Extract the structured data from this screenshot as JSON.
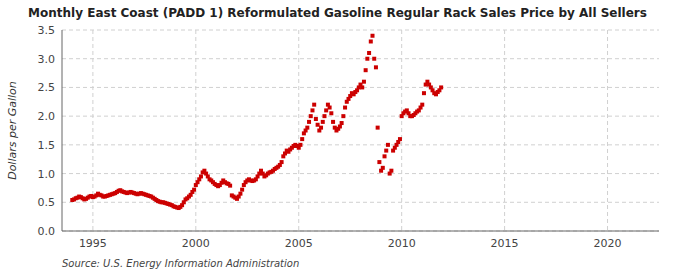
{
  "chart_data": {
    "type": "scatter",
    "title": "Monthly East Coast (PADD 1) Reformulated Gasoline Regular Rack Sales Price by All Sellers",
    "ylabel": "Dollars per Gallon",
    "annotations": [
      "Source: U.S. Energy Information Administration"
    ],
    "color": "#cc0000",
    "marker": "square",
    "grid": true,
    "xlim": [
      1993.5,
      2022.5
    ],
    "ylim": [
      0.0,
      3.5
    ],
    "xticks": [
      1995,
      2000,
      2005,
      2010,
      2015,
      2020
    ],
    "yticks": [
      {
        "value": 0,
        "label": "0.0"
      },
      0.5,
      {
        "value": 1,
        "label": "1.0"
      },
      1.5,
      {
        "value": 2,
        "label": "2.0"
      },
      2.5,
      {
        "value": 3,
        "label": "3.0"
      },
      3.5
    ],
    "x": [
      1994.0,
      1994.083,
      1994.167,
      1994.25,
      1994.333,
      1994.417,
      1994.5,
      1994.583,
      1994.667,
      1994.75,
      1994.833,
      1994.917,
      1995.0,
      1995.083,
      1995.167,
      1995.25,
      1995.333,
      1995.417,
      1995.5,
      1995.583,
      1995.667,
      1995.75,
      1995.833,
      1995.917,
      1996.0,
      1996.083,
      1996.167,
      1996.25,
      1996.333,
      1996.417,
      1996.5,
      1996.583,
      1996.667,
      1996.75,
      1996.833,
      1996.917,
      1997.0,
      1997.083,
      1997.167,
      1997.25,
      1997.333,
      1997.417,
      1997.5,
      1997.583,
      1997.667,
      1997.75,
      1997.833,
      1997.917,
      1998.0,
      1998.083,
      1998.167,
      1998.25,
      1998.333,
      1998.417,
      1998.5,
      1998.583,
      1998.667,
      1998.75,
      1998.833,
      1998.917,
      1999.0,
      1999.083,
      1999.167,
      1999.25,
      1999.333,
      1999.417,
      1999.5,
      1999.583,
      1999.667,
      1999.75,
      1999.833,
      1999.917,
      2000.0,
      2000.083,
      2000.167,
      2000.25,
      2000.333,
      2000.417,
      2000.5,
      2000.583,
      2000.667,
      2000.75,
      2000.833,
      2000.917,
      2001.0,
      2001.083,
      2001.167,
      2001.25,
      2001.333,
      2001.417,
      2001.5,
      2001.583,
      2001.667,
      2001.75,
      2001.833,
      2001.917,
      2002.0,
      2002.083,
      2002.167,
      2002.25,
      2002.333,
      2002.417,
      2002.5,
      2002.583,
      2002.667,
      2002.75,
      2002.833,
      2002.917,
      2003.0,
      2003.083,
      2003.167,
      2003.25,
      2003.333,
      2003.417,
      2003.5,
      2003.583,
      2003.667,
      2003.75,
      2003.833,
      2003.917,
      2004.0,
      2004.083,
      2004.167,
      2004.25,
      2004.333,
      2004.417,
      2004.5,
      2004.583,
      2004.667,
      2004.75,
      2004.833,
      2004.917,
      2005.0,
      2005.083,
      2005.167,
      2005.25,
      2005.333,
      2005.417,
      2005.5,
      2005.583,
      2005.667,
      2005.75,
      2005.833,
      2005.917,
      2006.0,
      2006.083,
      2006.167,
      2006.25,
      2006.333,
      2006.417,
      2006.5,
      2006.583,
      2006.667,
      2006.75,
      2006.833,
      2006.917,
      2007.0,
      2007.083,
      2007.167,
      2007.25,
      2007.333,
      2007.417,
      2007.5,
      2007.583,
      2007.667,
      2007.75,
      2007.833,
      2007.917,
      2008.0,
      2008.083,
      2008.167,
      2008.25,
      2008.333,
      2008.417,
      2008.5,
      2008.583,
      2008.667,
      2008.75,
      2008.833,
      2008.917,
      2009.0,
      2009.083,
      2009.167,
      2009.25,
      2009.333,
      2009.417,
      2009.5,
      2009.583,
      2009.667,
      2009.75,
      2009.833,
      2009.917,
      2010.0,
      2010.083,
      2010.167,
      2010.25,
      2010.333,
      2010.417,
      2010.5,
      2010.583,
      2010.667,
      2010.75,
      2010.833,
      2010.917,
      2011.0,
      2011.083,
      2011.167,
      2011.25,
      2011.333,
      2011.417,
      2011.5,
      2011.583,
      2011.667,
      2011.75,
      2011.833,
      2011.917
    ],
    "values": [
      0.54,
      0.55,
      0.57,
      0.58,
      0.6,
      0.59,
      0.57,
      0.55,
      0.56,
      0.58,
      0.6,
      0.61,
      0.59,
      0.6,
      0.62,
      0.65,
      0.63,
      0.62,
      0.6,
      0.6,
      0.61,
      0.62,
      0.63,
      0.64,
      0.65,
      0.66,
      0.68,
      0.7,
      0.71,
      0.69,
      0.68,
      0.67,
      0.66,
      0.67,
      0.68,
      0.67,
      0.66,
      0.65,
      0.64,
      0.65,
      0.66,
      0.65,
      0.64,
      0.63,
      0.62,
      0.61,
      0.6,
      0.58,
      0.56,
      0.54,
      0.52,
      0.51,
      0.5,
      0.5,
      0.49,
      0.48,
      0.47,
      0.46,
      0.45,
      0.43,
      0.42,
      0.41,
      0.4,
      0.42,
      0.45,
      0.5,
      0.55,
      0.57,
      0.6,
      0.63,
      0.68,
      0.72,
      0.8,
      0.85,
      0.9,
      0.95,
      1.02,
      1.05,
      1.0,
      0.95,
      0.9,
      0.88,
      0.85,
      0.82,
      0.8,
      0.78,
      0.8,
      0.84,
      0.88,
      0.85,
      0.83,
      0.82,
      0.79,
      0.62,
      0.6,
      0.58,
      0.56,
      0.6,
      0.65,
      0.72,
      0.8,
      0.85,
      0.88,
      0.9,
      0.88,
      0.87,
      0.88,
      0.9,
      0.95,
      1.0,
      1.05,
      1.0,
      0.95,
      0.97,
      1.0,
      1.02,
      1.03,
      1.05,
      1.08,
      1.1,
      1.12,
      1.15,
      1.2,
      1.3,
      1.35,
      1.4,
      1.38,
      1.42,
      1.45,
      1.48,
      1.5,
      1.48,
      1.45,
      1.5,
      1.6,
      1.7,
      1.75,
      1.8,
      1.9,
      2.0,
      2.1,
      2.2,
      1.95,
      1.85,
      1.75,
      1.8,
      1.9,
      2.0,
      2.1,
      2.2,
      2.15,
      2.05,
      1.9,
      1.8,
      1.75,
      1.78,
      1.82,
      1.88,
      2.0,
      2.15,
      2.25,
      2.3,
      2.35,
      2.4,
      2.38,
      2.42,
      2.45,
      2.5,
      2.55,
      2.5,
      2.6,
      2.8,
      3.0,
      3.1,
      3.3,
      3.4,
      3.0,
      2.85,
      1.8,
      1.2,
      1.05,
      1.1,
      1.3,
      1.4,
      1.5,
      1.0,
      1.05,
      1.4,
      1.45,
      1.5,
      1.55,
      1.6,
      2.0,
      2.05,
      2.08,
      2.1,
      2.05,
      2.0,
      2.0,
      2.02,
      2.05,
      2.08,
      2.1,
      2.15,
      2.2,
      2.4,
      2.55,
      2.6,
      2.55,
      2.5,
      2.45,
      2.4,
      2.38,
      2.42,
      2.45,
      2.5
    ]
  }
}
